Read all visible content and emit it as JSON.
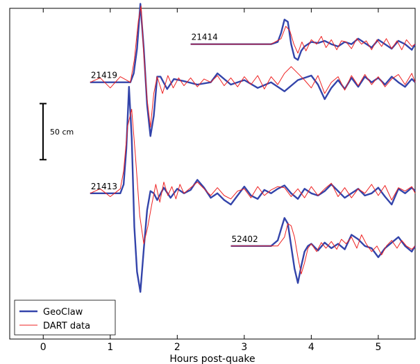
{
  "chart_data": {
    "type": "line",
    "xlabel": "Hours post-quake",
    "xlim": [
      -0.5,
      5.55
    ],
    "ylim": [
      -1.3,
      1.65
    ],
    "xticks": [
      0,
      1,
      2,
      3,
      4,
      5
    ],
    "grid": false,
    "legend": {
      "placement": "bottom-left",
      "entries": [
        "GeoClaw",
        "DART data"
      ]
    },
    "colors": {
      "geoclaw": "#3344aa",
      "dart": "#ee2222"
    },
    "scale_bar": {
      "label": "50 cm",
      "length_m": 0.5
    },
    "stations": [
      {
        "label": "21414",
        "offset": 1.33,
        "geoclaw": {
          "x": [
            2.2,
            3.4,
            3.5,
            3.55,
            3.6,
            3.65,
            3.7,
            3.75,
            3.8,
            3.85,
            3.9,
            4.0,
            4.1,
            4.2,
            4.3,
            4.4,
            4.5,
            4.6,
            4.7,
            4.8,
            4.9,
            5.0,
            5.1,
            5.2,
            5.3,
            5.4,
            5.5,
            5.55
          ],
          "y": [
            0,
            0,
            0.02,
            0.1,
            0.22,
            0.2,
            0.0,
            -0.12,
            -0.14,
            -0.06,
            -0.02,
            0.02,
            0.01,
            0.03,
            0.0,
            -0.02,
            0.02,
            0.0,
            0.05,
            0.01,
            -0.03,
            0.04,
            0.0,
            -0.04,
            0.03,
            0.0,
            -0.05,
            0.0
          ]
        },
        "dart": {
          "x": [
            2.2,
            3.4,
            3.55,
            3.62,
            3.68,
            3.74,
            3.8,
            3.86,
            3.92,
            4.0,
            4.08,
            4.15,
            4.22,
            4.3,
            4.38,
            4.45,
            4.52,
            4.6,
            4.68,
            4.75,
            4.82,
            4.9,
            4.98,
            5.05,
            5.12,
            5.2,
            5.28,
            5.35,
            5.42,
            5.5,
            5.55
          ],
          "y": [
            0,
            0,
            0.05,
            0.16,
            0.12,
            0.0,
            -0.08,
            0.02,
            -0.06,
            0.04,
            0.0,
            0.07,
            -0.03,
            0.04,
            -0.05,
            0.03,
            0.02,
            -0.04,
            0.05,
            0.0,
            0.03,
            -0.05,
            0.04,
            -0.02,
            0.05,
            -0.04,
            0.03,
            -0.05,
            0.04,
            -0.02,
            0.0
          ]
        }
      },
      {
        "label": "21419",
        "offset": 0.99,
        "geoclaw": {
          "x": [
            0.7,
            1.3,
            1.35,
            1.4,
            1.45,
            1.5,
            1.55,
            1.6,
            1.65,
            1.7,
            1.75,
            1.85,
            1.95,
            2.1,
            2.3,
            2.5,
            2.6,
            2.8,
            3.0,
            3.2,
            3.4,
            3.6,
            3.8,
            4.0,
            4.1,
            4.2,
            4.3,
            4.4,
            4.5,
            4.6,
            4.7,
            4.8,
            4.9,
            5.0,
            5.1,
            5.2,
            5.3,
            5.4,
            5.5,
            5.55
          ],
          "y": [
            0,
            0,
            0.08,
            0.3,
            0.7,
            0.3,
            -0.2,
            -0.48,
            -0.3,
            0.05,
            0.05,
            -0.06,
            0.03,
            0.01,
            -0.02,
            0.0,
            0.08,
            -0.02,
            0.02,
            -0.05,
            0.0,
            -0.08,
            0.02,
            0.06,
            -0.02,
            -0.15,
            -0.05,
            0.02,
            -0.06,
            0.04,
            -0.04,
            0.05,
            0.0,
            0.04,
            -0.02,
            0.05,
            0.0,
            -0.04,
            0.03,
            0.0
          ]
        },
        "dart": {
          "x": [
            0.7,
            0.85,
            1.0,
            1.15,
            1.3,
            1.36,
            1.42,
            1.46,
            1.5,
            1.55,
            1.6,
            1.65,
            1.7,
            1.78,
            1.86,
            1.94,
            2.02,
            2.1,
            2.2,
            2.3,
            2.4,
            2.5,
            2.6,
            2.7,
            2.8,
            2.9,
            3.0,
            3.1,
            3.2,
            3.3,
            3.4,
            3.5,
            3.6,
            3.7,
            3.8,
            3.9,
            4.0,
            4.1,
            4.2,
            4.3,
            4.4,
            4.5,
            4.6,
            4.7,
            4.8,
            4.9,
            5.0,
            5.1,
            5.2,
            5.3,
            5.4,
            5.5,
            5.55
          ],
          "y": [
            0,
            0.04,
            -0.05,
            0.05,
            0.0,
            0.2,
            0.55,
            0.68,
            0.25,
            -0.15,
            -0.4,
            -0.1,
            0.05,
            -0.1,
            0.06,
            -0.05,
            0.04,
            -0.03,
            0.04,
            -0.04,
            0.03,
            0.0,
            0.06,
            -0.03,
            0.04,
            -0.04,
            0.05,
            -0.02,
            0.06,
            -0.06,
            0.05,
            -0.02,
            0.08,
            0.14,
            0.08,
            0.02,
            -0.05,
            0.06,
            -0.1,
            0.0,
            0.05,
            -0.07,
            0.06,
            -0.03,
            0.07,
            -0.02,
            0.05,
            -0.04,
            0.03,
            0.07,
            -0.02,
            0.08,
            0.0
          ]
        }
      },
      {
        "label": "21413",
        "offset": 0.0,
        "geoclaw": {
          "x": [
            0.7,
            1.15,
            1.2,
            1.24,
            1.28,
            1.32,
            1.36,
            1.4,
            1.45,
            1.5,
            1.55,
            1.6,
            1.65,
            1.7,
            1.8,
            1.9,
            2.0,
            2.1,
            2.2,
            2.3,
            2.4,
            2.5,
            2.6,
            2.7,
            2.8,
            2.9,
            3.0,
            3.1,
            3.2,
            3.3,
            3.4,
            3.5,
            3.6,
            3.7,
            3.8,
            3.9,
            4.0,
            4.1,
            4.2,
            4.3,
            4.4,
            4.5,
            4.6,
            4.7,
            4.8,
            4.9,
            5.0,
            5.1,
            5.2,
            5.3,
            5.4,
            5.5,
            5.55
          ],
          "y": [
            0,
            0,
            0.08,
            0.4,
            0.95,
            0.5,
            -0.3,
            -0.7,
            -0.88,
            -0.5,
            -0.15,
            0.02,
            0.0,
            -0.06,
            0.05,
            -0.04,
            0.04,
            0.0,
            0.03,
            0.12,
            0.05,
            -0.04,
            0.0,
            -0.06,
            -0.1,
            -0.02,
            0.06,
            -0.02,
            -0.05,
            0.03,
            0.0,
            0.04,
            0.07,
            0.0,
            -0.05,
            0.04,
            0.0,
            -0.02,
            0.02,
            0.08,
            0.02,
            -0.04,
            0.0,
            0.04,
            -0.02,
            0.0,
            0.05,
            -0.03,
            -0.1,
            0.04,
            0.0,
            0.05,
            0.02
          ]
        },
        "dart": {
          "x": [
            0.7,
            0.85,
            1.0,
            1.15,
            1.2,
            1.26,
            1.32,
            1.38,
            1.44,
            1.5,
            1.56,
            1.62,
            1.68,
            1.74,
            1.8,
            1.86,
            1.92,
            1.98,
            2.04,
            2.1,
            2.2,
            2.3,
            2.4,
            2.5,
            2.6,
            2.7,
            2.8,
            2.9,
            3.0,
            3.1,
            3.2,
            3.3,
            3.4,
            3.5,
            3.6,
            3.7,
            3.8,
            3.9,
            4.0,
            4.1,
            4.2,
            4.3,
            4.4,
            4.5,
            4.6,
            4.7,
            4.8,
            4.9,
            5.0,
            5.1,
            5.2,
            5.3,
            5.4,
            5.5,
            5.55
          ],
          "y": [
            0,
            0.04,
            -0.03,
            0.04,
            0.2,
            0.6,
            0.75,
            0.3,
            -0.2,
            -0.45,
            -0.3,
            -0.1,
            0.08,
            -0.08,
            0.1,
            -0.02,
            0.06,
            -0.05,
            0.08,
            0.0,
            0.05,
            0.1,
            0.04,
            -0.02,
            0.05,
            -0.02,
            -0.05,
            0.02,
            0.04,
            -0.04,
            0.06,
            -0.02,
            0.03,
            0.06,
            0.05,
            -0.03,
            0.04,
            -0.04,
            0.06,
            -0.02,
            0.04,
            0.09,
            -0.03,
            0.05,
            -0.04,
            0.04,
            0.0,
            0.08,
            -0.02,
            0.07,
            -0.06,
            0.05,
            0.02,
            0.06,
            0.0
          ]
        }
      },
      {
        "label": "52402",
        "offset": -0.47,
        "geoclaw": {
          "x": [
            2.8,
            3.4,
            3.5,
            3.55,
            3.6,
            3.65,
            3.7,
            3.75,
            3.8,
            3.85,
            3.9,
            3.95,
            4.0,
            4.1,
            4.2,
            4.3,
            4.4,
            4.5,
            4.6,
            4.7,
            4.8,
            4.9,
            5.0,
            5.1,
            5.2,
            5.3,
            5.4,
            5.5,
            5.55
          ],
          "y": [
            0,
            0,
            0.05,
            0.15,
            0.25,
            0.2,
            0.0,
            -0.2,
            -0.33,
            -0.18,
            -0.05,
            0.0,
            0.02,
            -0.04,
            0.03,
            -0.02,
            0.02,
            -0.03,
            0.1,
            0.06,
            0.0,
            -0.02,
            -0.1,
            -0.02,
            0.03,
            0.08,
            0.0,
            -0.05,
            0.0
          ]
        },
        "dart": {
          "x": [
            2.8,
            3.5,
            3.6,
            3.65,
            3.7,
            3.75,
            3.8,
            3.85,
            3.9,
            3.95,
            4.0,
            4.08,
            4.15,
            4.22,
            4.3,
            4.38,
            4.45,
            4.52,
            4.6,
            4.68,
            4.75,
            4.82,
            4.9,
            4.98,
            5.05,
            5.12,
            5.2,
            5.28,
            5.35,
            5.42,
            5.5,
            5.55
          ],
          "y": [
            0,
            0,
            0.08,
            0.2,
            0.18,
            0.08,
            -0.1,
            -0.25,
            -0.15,
            -0.02,
            0.02,
            -0.05,
            0.03,
            -0.02,
            0.04,
            -0.03,
            0.06,
            0.02,
            0.08,
            -0.02,
            0.1,
            0.02,
            -0.05,
            0.0,
            -0.08,
            0.0,
            0.05,
            -0.02,
            0.05,
            0.0,
            -0.03,
            0.0
          ]
        }
      }
    ]
  }
}
